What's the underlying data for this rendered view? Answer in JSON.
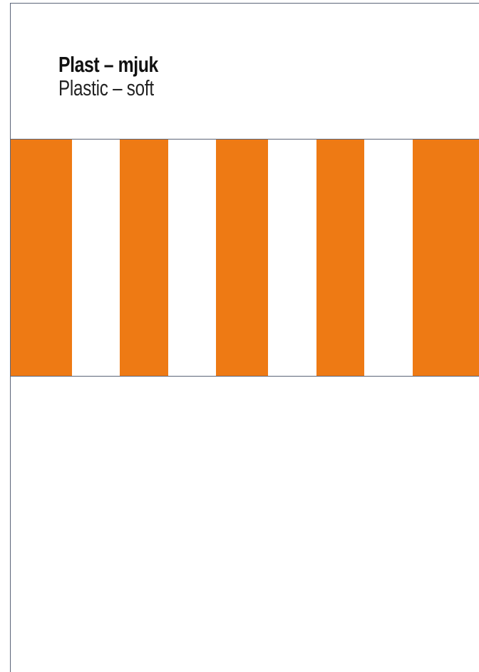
{
  "label": {
    "title_sv": "Plast – mjuk",
    "title_en": "Plastic – soft"
  },
  "colors": {
    "accent": "#EE7A14",
    "background": "#FFFFFF",
    "frame": "#5B6478"
  },
  "stripe_pattern": [
    "orange",
    "white",
    "orange",
    "white",
    "orange",
    "white",
    "orange",
    "white",
    "orange"
  ]
}
